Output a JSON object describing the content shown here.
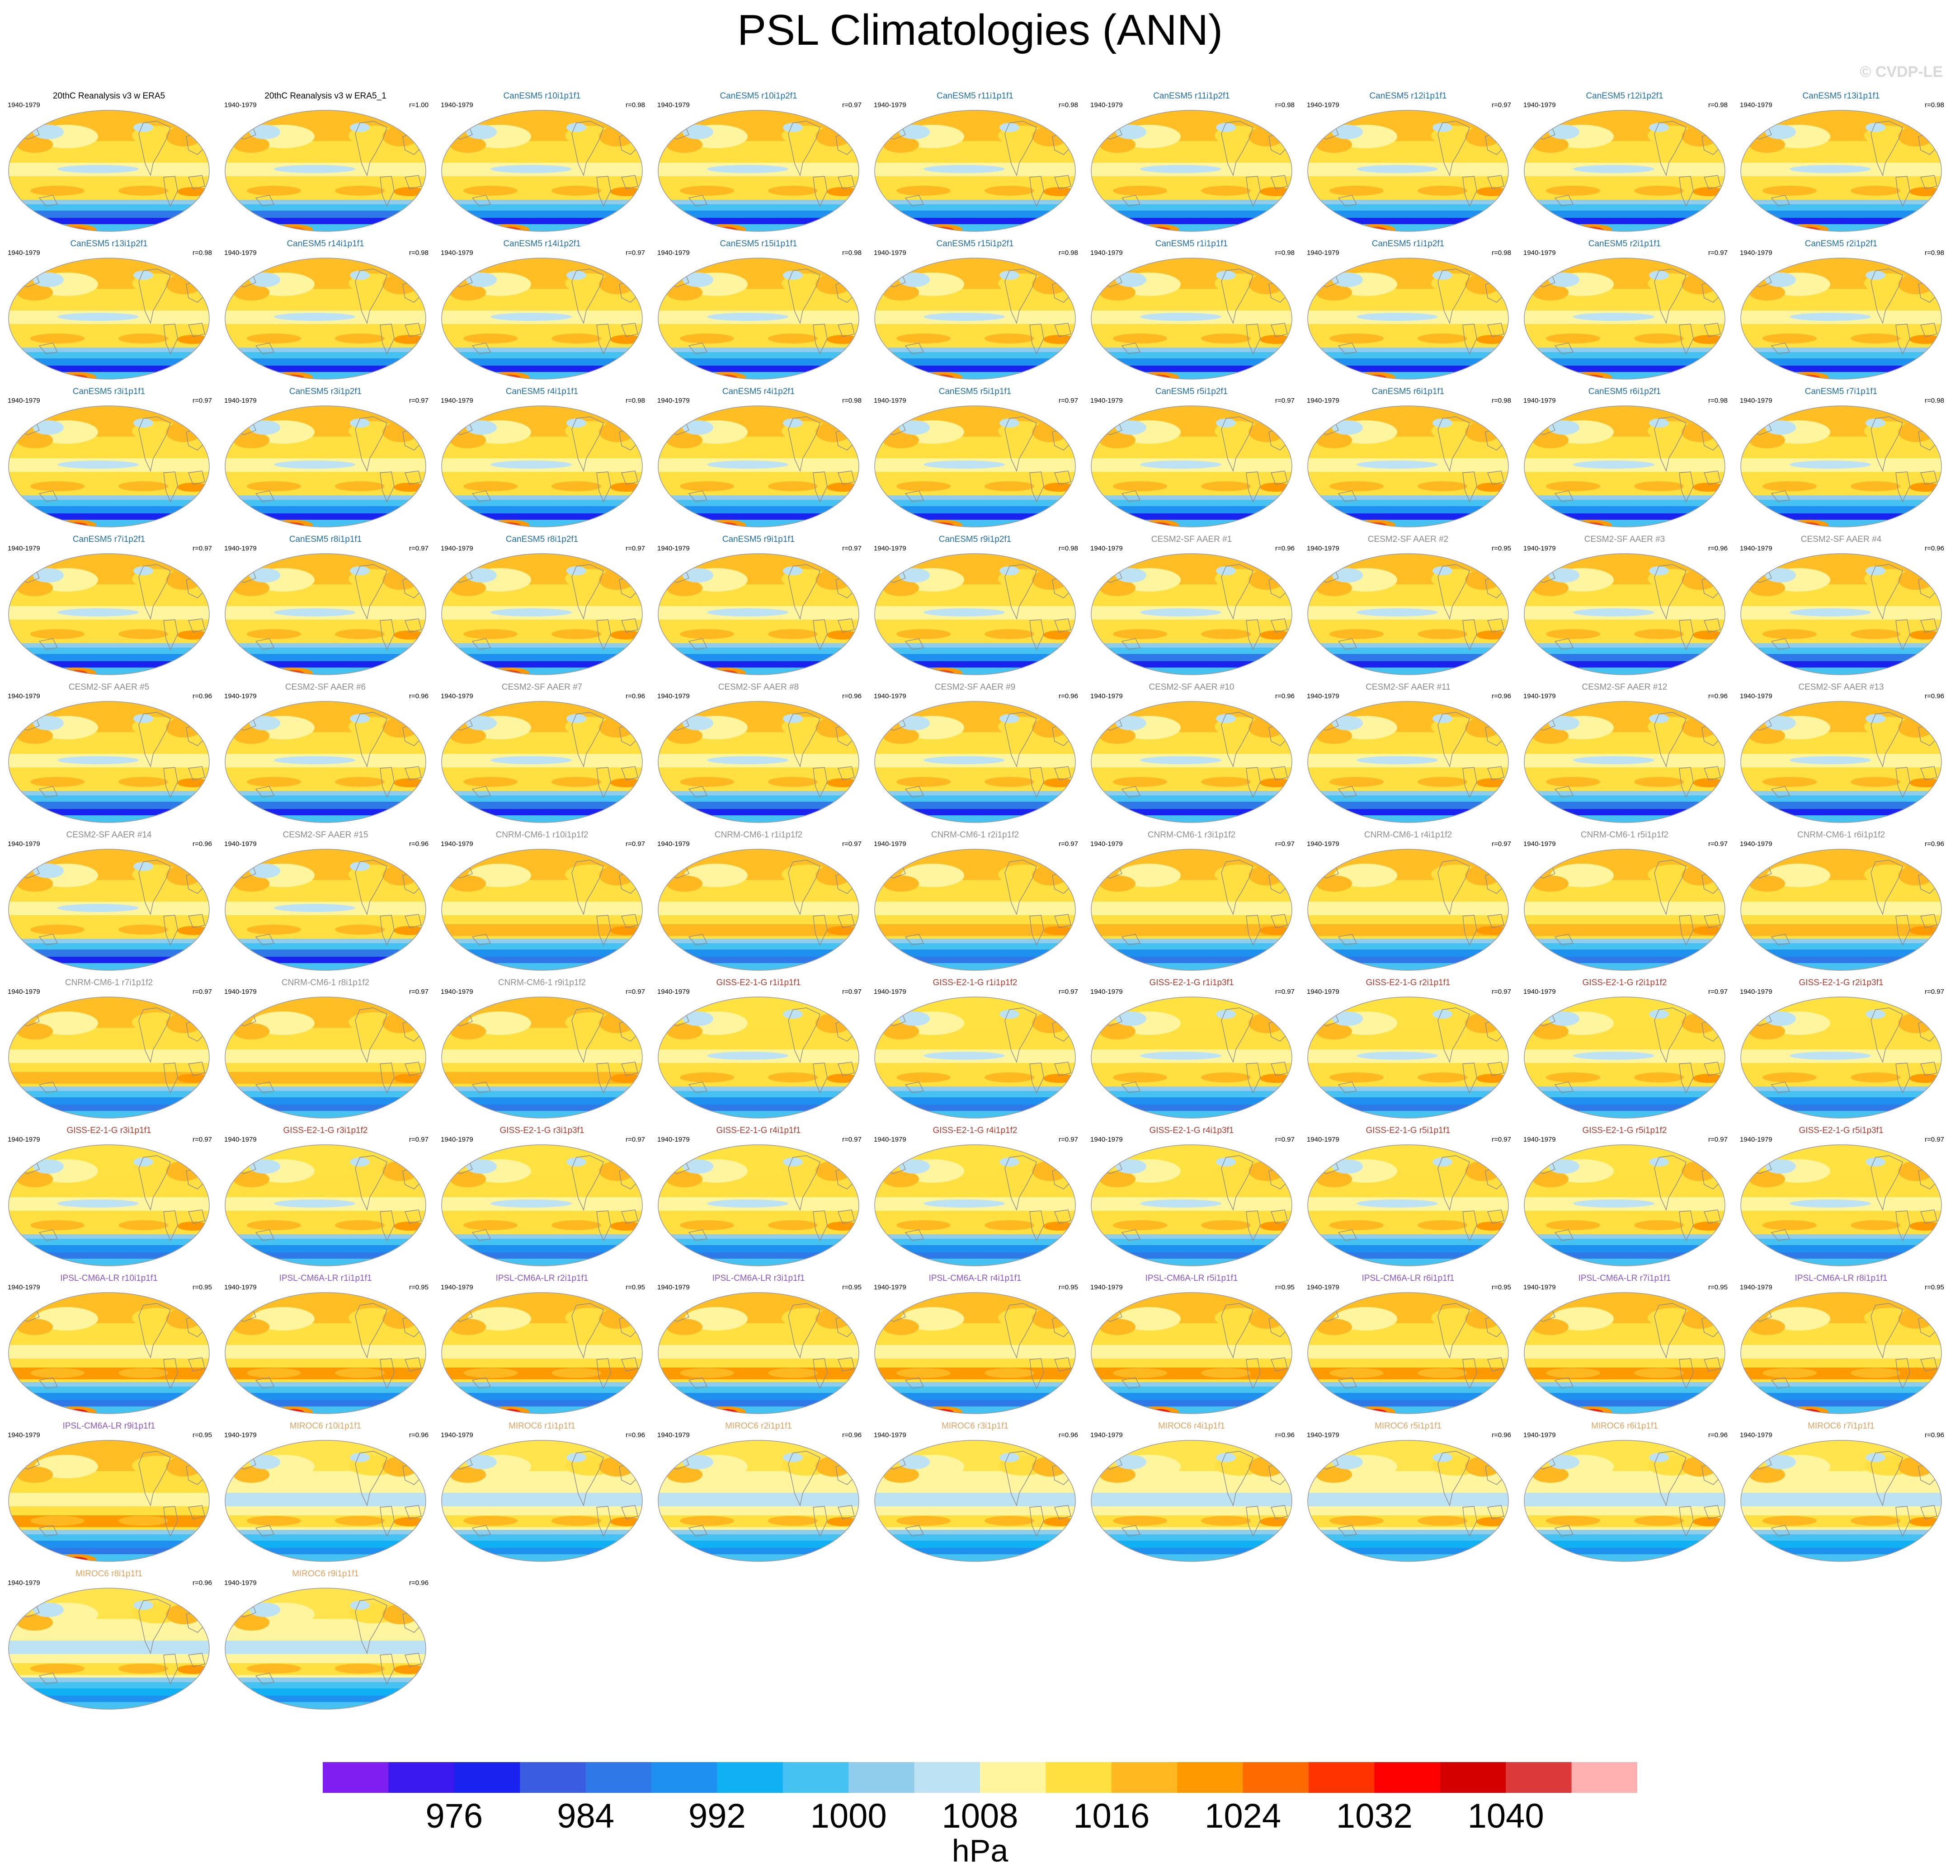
{
  "title": "PSL Climatologies (ANN)",
  "copyright": "© CVDP-LE",
  "panel_period": "1940-1979",
  "chart_data": {
    "type": "heatmap",
    "title": "PSL Climatologies (ANN)",
    "units": "hPa",
    "colorbar": {
      "tick_labels": [
        "976",
        "984",
        "992",
        "1000",
        "1008",
        "1016",
        "1024",
        "1032",
        "1040"
      ],
      "colors": [
        "#7f1ef0",
        "#3a18f0",
        "#1a22f0",
        "#3a5ce0",
        "#2e78e8",
        "#1e90f0",
        "#10b0f4",
        "#46c2f2",
        "#90ccec",
        "#bde2f4",
        "#fff59e",
        "#ffe040",
        "#ffb820",
        "#ff9900",
        "#ff6a00",
        "#ff3300",
        "#ff0000",
        "#d40000",
        "#dc3a3a",
        "#ffb0b0"
      ]
    },
    "groups": [
      {
        "name": "20thC Reanalysis v3 w ERA5",
        "color": "#000000"
      },
      {
        "name": "CanESM5",
        "color": "#1f6fa8"
      },
      {
        "name": "CESM2-SF AAER",
        "color": "#8a8a8a"
      },
      {
        "name": "CNRM-CM6-1",
        "color": "#8f8f8f"
      },
      {
        "name": "GISS-E2-1-G",
        "color": "#b03a2e"
      },
      {
        "name": "IPSL-CM6A-LR",
        "color": "#8a56c8"
      },
      {
        "name": "MIROC6",
        "color": "#e2a25e"
      }
    ],
    "panels": [
      {
        "title": "20thC Reanalysis v3 w ERA5",
        "r": "",
        "group": 0,
        "style": "obs"
      },
      {
        "title": "20thC Reanalysis v3 w ERA5_1",
        "r": "r=1.00",
        "group": 0,
        "style": "obs"
      },
      {
        "title": "CanESM5 r10i1p1f1",
        "r": "r=0.98",
        "group": 1,
        "style": "can"
      },
      {
        "title": "CanESM5 r10i1p2f1",
        "r": "r=0.97",
        "group": 1,
        "style": "can"
      },
      {
        "title": "CanESM5 r11i1p1f1",
        "r": "r=0.98",
        "group": 1,
        "style": "can"
      },
      {
        "title": "CanESM5 r11i1p2f1",
        "r": "r=0.98",
        "group": 1,
        "style": "can"
      },
      {
        "title": "CanESM5 r12i1p1f1",
        "r": "r=0.97",
        "group": 1,
        "style": "can"
      },
      {
        "title": "CanESM5 r12i1p2f1",
        "r": "r=0.98",
        "group": 1,
        "style": "can"
      },
      {
        "title": "CanESM5 r13i1p1f1",
        "r": "r=0.98",
        "group": 1,
        "style": "can"
      },
      {
        "title": "CanESM5 r13i1p2f1",
        "r": "r=0.98",
        "group": 1,
        "style": "can"
      },
      {
        "title": "CanESM5 r14i1p1f1",
        "r": "r=0.98",
        "group": 1,
        "style": "can"
      },
      {
        "title": "CanESM5 r14i1p2f1",
        "r": "r=0.97",
        "group": 1,
        "style": "can"
      },
      {
        "title": "CanESM5 r15i1p1f1",
        "r": "r=0.98",
        "group": 1,
        "style": "can"
      },
      {
        "title": "CanESM5 r15i1p2f1",
        "r": "r=0.98",
        "group": 1,
        "style": "can"
      },
      {
        "title": "CanESM5 r1i1p1f1",
        "r": "r=0.98",
        "group": 1,
        "style": "can"
      },
      {
        "title": "CanESM5 r1i1p2f1",
        "r": "r=0.98",
        "group": 1,
        "style": "can"
      },
      {
        "title": "CanESM5 r2i1p1f1",
        "r": "r=0.97",
        "group": 1,
        "style": "can"
      },
      {
        "title": "CanESM5 r2i1p2f1",
        "r": "r=0.98",
        "group": 1,
        "style": "can"
      },
      {
        "title": "CanESM5 r3i1p1f1",
        "r": "r=0.97",
        "group": 1,
        "style": "can"
      },
      {
        "title": "CanESM5 r3i1p2f1",
        "r": "r=0.97",
        "group": 1,
        "style": "can"
      },
      {
        "title": "CanESM5 r4i1p1f1",
        "r": "r=0.98",
        "group": 1,
        "style": "can"
      },
      {
        "title": "CanESM5 r4i1p2f1",
        "r": "r=0.98",
        "group": 1,
        "style": "can"
      },
      {
        "title": "CanESM5 r5i1p1f1",
        "r": "r=0.97",
        "group": 1,
        "style": "can"
      },
      {
        "title": "CanESM5 r5i1p2f1",
        "r": "r=0.97",
        "group": 1,
        "style": "can"
      },
      {
        "title": "CanESM5 r6i1p1f1",
        "r": "r=0.98",
        "group": 1,
        "style": "can"
      },
      {
        "title": "CanESM5 r6i1p2f1",
        "r": "r=0.98",
        "group": 1,
        "style": "can"
      },
      {
        "title": "CanESM5 r7i1p1f1",
        "r": "r=0.98",
        "group": 1,
        "style": "can"
      },
      {
        "title": "CanESM5 r7i1p2f1",
        "r": "r=0.97",
        "group": 1,
        "style": "can"
      },
      {
        "title": "CanESM5 r8i1p1f1",
        "r": "r=0.97",
        "group": 1,
        "style": "can"
      },
      {
        "title": "CanESM5 r8i1p2f1",
        "r": "r=0.97",
        "group": 1,
        "style": "can"
      },
      {
        "title": "CanESM5 r9i1p1f1",
        "r": "r=0.97",
        "group": 1,
        "style": "can"
      },
      {
        "title": "CanESM5 r9i1p2f1",
        "r": "r=0.98",
        "group": 1,
        "style": "can"
      },
      {
        "title": "CESM2-SF AAER #1",
        "r": "r=0.96",
        "group": 2,
        "style": "cesm"
      },
      {
        "title": "CESM2-SF AAER #2",
        "r": "r=0.95",
        "group": 2,
        "style": "cesm"
      },
      {
        "title": "CESM2-SF AAER #3",
        "r": "r=0.96",
        "group": 2,
        "style": "cesm"
      },
      {
        "title": "CESM2-SF AAER #4",
        "r": "r=0.96",
        "group": 2,
        "style": "cesm"
      },
      {
        "title": "CESM2-SF AAER #5",
        "r": "r=0.96",
        "group": 2,
        "style": "cesm"
      },
      {
        "title": "CESM2-SF AAER #6",
        "r": "r=0.96",
        "group": 2,
        "style": "cesm"
      },
      {
        "title": "CESM2-SF AAER #7",
        "r": "r=0.96",
        "group": 2,
        "style": "cesm"
      },
      {
        "title": "CESM2-SF AAER #8",
        "r": "r=0.96",
        "group": 2,
        "style": "cesm"
      },
      {
        "title": "CESM2-SF AAER #9",
        "r": "r=0.96",
        "group": 2,
        "style": "cesm"
      },
      {
        "title": "CESM2-SF AAER #10",
        "r": "r=0.96",
        "group": 2,
        "style": "cesm"
      },
      {
        "title": "CESM2-SF AAER #11",
        "r": "r=0.96",
        "group": 2,
        "style": "cesm"
      },
      {
        "title": "CESM2-SF AAER #12",
        "r": "r=0.96",
        "group": 2,
        "style": "cesm"
      },
      {
        "title": "CESM2-SF AAER #13",
        "r": "r=0.96",
        "group": 2,
        "style": "cesm"
      },
      {
        "title": "CESM2-SF AAER #14",
        "r": "r=0.96",
        "group": 2,
        "style": "cesm"
      },
      {
        "title": "CESM2-SF AAER #15",
        "r": "r=0.96",
        "group": 2,
        "style": "cesm"
      },
      {
        "title": "CNRM-CM6-1 r10i1p1f2",
        "r": "r=0.97",
        "group": 3,
        "style": "cnrm"
      },
      {
        "title": "CNRM-CM6-1 r1i1p1f2",
        "r": "r=0.97",
        "group": 3,
        "style": "cnrm"
      },
      {
        "title": "CNRM-CM6-1 r2i1p1f2",
        "r": "r=0.97",
        "group": 3,
        "style": "cnrm"
      },
      {
        "title": "CNRM-CM6-1 r3i1p1f2",
        "r": "r=0.97",
        "group": 3,
        "style": "cnrm"
      },
      {
        "title": "CNRM-CM6-1 r4i1p1f2",
        "r": "r=0.97",
        "group": 3,
        "style": "cnrm"
      },
      {
        "title": "CNRM-CM6-1 r5i1p1f2",
        "r": "r=0.97",
        "group": 3,
        "style": "cnrm"
      },
      {
        "title": "CNRM-CM6-1 r6i1p1f2",
        "r": "r=0.96",
        "group": 3,
        "style": "cnrm"
      },
      {
        "title": "CNRM-CM6-1 r7i1p1f2",
        "r": "r=0.97",
        "group": 3,
        "style": "cnrm"
      },
      {
        "title": "CNRM-CM6-1 r8i1p1f2",
        "r": "r=0.97",
        "group": 3,
        "style": "cnrm"
      },
      {
        "title": "CNRM-CM6-1 r9i1p1f2",
        "r": "r=0.97",
        "group": 3,
        "style": "cnrm"
      },
      {
        "title": "GISS-E2-1-G r1i1p1f1",
        "r": "r=0.97",
        "group": 4,
        "style": "giss"
      },
      {
        "title": "GISS-E2-1-G r1i1p1f2",
        "r": "r=0.97",
        "group": 4,
        "style": "giss"
      },
      {
        "title": "GISS-E2-1-G r1i1p3f1",
        "r": "r=0.97",
        "group": 4,
        "style": "giss"
      },
      {
        "title": "GISS-E2-1-G r2i1p1f1",
        "r": "r=0.97",
        "group": 4,
        "style": "giss"
      },
      {
        "title": "GISS-E2-1-G r2i1p1f2",
        "r": "r=0.97",
        "group": 4,
        "style": "giss"
      },
      {
        "title": "GISS-E2-1-G r2i1p3f1",
        "r": "r=0.97",
        "group": 4,
        "style": "giss"
      },
      {
        "title": "GISS-E2-1-G r3i1p1f1",
        "r": "r=0.97",
        "group": 4,
        "style": "giss"
      },
      {
        "title": "GISS-E2-1-G r3i1p1f2",
        "r": "r=0.97",
        "group": 4,
        "style": "giss"
      },
      {
        "title": "GISS-E2-1-G r3i1p3f1",
        "r": "r=0.97",
        "group": 4,
        "style": "giss"
      },
      {
        "title": "GISS-E2-1-G r4i1p1f1",
        "r": "r=0.97",
        "group": 4,
        "style": "giss"
      },
      {
        "title": "GISS-E2-1-G r4i1p1f2",
        "r": "r=0.97",
        "group": 4,
        "style": "giss"
      },
      {
        "title": "GISS-E2-1-G r4i1p3f1",
        "r": "r=0.97",
        "group": 4,
        "style": "giss"
      },
      {
        "title": "GISS-E2-1-G r5i1p1f1",
        "r": "r=0.97",
        "group": 4,
        "style": "giss"
      },
      {
        "title": "GISS-E2-1-G r5i1p1f2",
        "r": "r=0.97",
        "group": 4,
        "style": "giss"
      },
      {
        "title": "GISS-E2-1-G r5i1p3f1",
        "r": "r=0.97",
        "group": 4,
        "style": "giss"
      },
      {
        "title": "IPSL-CM6A-LR r10i1p1f1",
        "r": "r=0.95",
        "group": 5,
        "style": "ipsl"
      },
      {
        "title": "IPSL-CM6A-LR r1i1p1f1",
        "r": "r=0.95",
        "group": 5,
        "style": "ipsl"
      },
      {
        "title": "IPSL-CM6A-LR r2i1p1f1",
        "r": "r=0.95",
        "group": 5,
        "style": "ipsl"
      },
      {
        "title": "IPSL-CM6A-LR r3i1p1f1",
        "r": "r=0.95",
        "group": 5,
        "style": "ipsl"
      },
      {
        "title": "IPSL-CM6A-LR r4i1p1f1",
        "r": "r=0.95",
        "group": 5,
        "style": "ipsl"
      },
      {
        "title": "IPSL-CM6A-LR r5i1p1f1",
        "r": "r=0.95",
        "group": 5,
        "style": "ipsl"
      },
      {
        "title": "IPSL-CM6A-LR r6i1p1f1",
        "r": "r=0.95",
        "group": 5,
        "style": "ipsl"
      },
      {
        "title": "IPSL-CM6A-LR r7i1p1f1",
        "r": "r=0.95",
        "group": 5,
        "style": "ipsl"
      },
      {
        "title": "IPSL-CM6A-LR r8i1p1f1",
        "r": "r=0.95",
        "group": 5,
        "style": "ipsl"
      },
      {
        "title": "IPSL-CM6A-LR r9i1p1f1",
        "r": "r=0.95",
        "group": 5,
        "style": "ipsl"
      },
      {
        "title": "MIROC6 r10i1p1f1",
        "r": "r=0.96",
        "group": 6,
        "style": "miroc"
      },
      {
        "title": "MIROC6 r1i1p1f1",
        "r": "r=0.96",
        "group": 6,
        "style": "miroc"
      },
      {
        "title": "MIROC6 r2i1p1f1",
        "r": "r=0.96",
        "group": 6,
        "style": "miroc"
      },
      {
        "title": "MIROC6 r3i1p1f1",
        "r": "r=0.96",
        "group": 6,
        "style": "miroc"
      },
      {
        "title": "MIROC6 r4i1p1f1",
        "r": "r=0.96",
        "group": 6,
        "style": "miroc"
      },
      {
        "title": "MIROC6 r5i1p1f1",
        "r": "r=0.96",
        "group": 6,
        "style": "miroc"
      },
      {
        "title": "MIROC6 r6i1p1f1",
        "r": "r=0.96",
        "group": 6,
        "style": "miroc"
      },
      {
        "title": "MIROC6 r7i1p1f1",
        "r": "r=0.96",
        "group": 6,
        "style": "miroc"
      },
      {
        "title": "MIROC6 r8i1p1f1",
        "r": "r=0.96",
        "group": 6,
        "style": "miroc"
      },
      {
        "title": "MIROC6 r9i1p1f1",
        "r": "r=0.96",
        "group": 6,
        "style": "miroc"
      }
    ]
  }
}
